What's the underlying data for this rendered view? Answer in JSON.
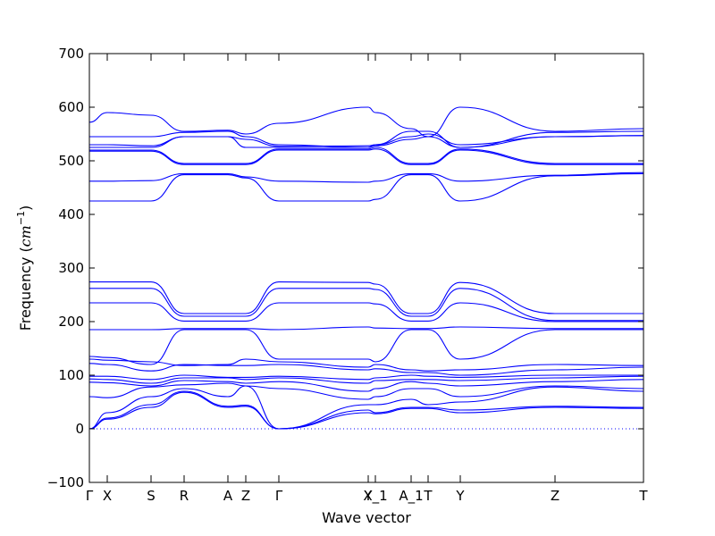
{
  "chart_data": {
    "type": "line",
    "title": "",
    "xlabel": "Wave vector",
    "ylabel": "Frequency (cm⁻¹)",
    "ylabel_prefix": "Frequency (",
    "ylabel_unit": "cm",
    "ylabel_exp": "−1",
    "ylabel_suffix": ")",
    "ylim": [
      -100,
      700
    ],
    "yticks": [
      -100,
      0,
      100,
      200,
      300,
      400,
      500,
      600,
      700
    ],
    "xlim": [
      0,
      6.2
    ],
    "grid": false,
    "legend": "none",
    "color": "#0000ff",
    "xticks": [
      {
        "label": "Γ",
        "x": 0.0
      },
      {
        "label": "X",
        "x": 0.2
      },
      {
        "label": "S",
        "x": 0.69
      },
      {
        "label": "R",
        "x": 1.06
      },
      {
        "label": "A",
        "x": 1.55
      },
      {
        "label": "Z",
        "x": 1.75
      },
      {
        "label": "Γ",
        "x": 2.12
      },
      {
        "label": "Y",
        "x": 3.12
      },
      {
        "label": "X_1",
        "x": 3.2
      },
      {
        "label": "A_1",
        "x": 3.6
      },
      {
        "label": "T",
        "x": 3.79
      },
      {
        "label": "Y",
        "x": 4.15
      },
      {
        "label": "Z",
        "x": 5.21
      },
      {
        "label": "T",
        "x": 6.2
      }
    ],
    "series": [
      {
        "x": [
          0,
          0.2,
          0.69,
          1.06,
          1.55,
          1.75,
          2.12,
          3.12,
          3.2,
          3.6,
          3.79,
          4.15,
          5.21,
          6.2
        ],
        "values": [
          572,
          590,
          585,
          555,
          557,
          550,
          570,
          600,
          590,
          560,
          545,
          600,
          555,
          560
        ]
      },
      {
        "x": [
          0,
          0.2,
          0.69,
          1.06,
          1.55,
          1.75,
          2.12,
          3.12,
          3.2,
          3.6,
          3.79,
          4.15,
          5.21,
          6.2
        ],
        "values": [
          545,
          545,
          545,
          553,
          555,
          545,
          530,
          525,
          530,
          555,
          555,
          525,
          553,
          555
        ]
      },
      {
        "x": [
          0,
          0.2,
          0.69,
          1.06,
          1.55,
          1.75,
          2.12,
          3.12,
          3.2,
          3.6,
          3.79,
          4.15,
          5.21,
          6.2
        ],
        "values": [
          530,
          530,
          528,
          545,
          545,
          540,
          527,
          528,
          530,
          545,
          550,
          530,
          545,
          547
        ]
      },
      {
        "x": [
          0,
          0.2,
          0.69,
          1.06,
          1.55,
          1.75,
          2.12,
          3.12,
          3.2,
          3.6,
          3.79,
          4.15,
          5.21,
          6.2
        ],
        "values": [
          525,
          525,
          525,
          545,
          545,
          525,
          525,
          525,
          528,
          540,
          545,
          525,
          545,
          547
        ]
      },
      {
        "x": [
          0,
          0.2,
          0.69,
          1.06,
          1.55,
          1.75,
          2.12,
          3.12,
          3.2,
          3.6,
          3.79,
          4.15,
          5.21,
          6.2
        ],
        "values": [
          520,
          520,
          520,
          495,
          495,
          495,
          522,
          522,
          525,
          495,
          495,
          522,
          495,
          495
        ]
      },
      {
        "x": [
          0,
          0.2,
          0.69,
          1.06,
          1.55,
          1.75,
          2.12,
          3.12,
          3.2,
          3.6,
          3.79,
          4.15,
          5.21,
          6.2
        ],
        "values": [
          518,
          518,
          518,
          493,
          493,
          493,
          520,
          520,
          522,
          493,
          493,
          520,
          493,
          493
        ]
      },
      {
        "x": [
          0,
          0.2,
          0.69,
          1.06,
          1.55,
          1.75,
          2.12,
          3.12,
          3.2,
          3.6,
          3.79,
          4.15,
          5.21,
          6.2
        ],
        "values": [
          462,
          462,
          463,
          476,
          476,
          470,
          462,
          460,
          462,
          476,
          476,
          462,
          473,
          478
        ]
      },
      {
        "x": [
          0,
          0.2,
          0.69,
          1.06,
          1.55,
          1.75,
          2.12,
          3.12,
          3.2,
          3.6,
          3.79,
          4.15,
          5.21,
          6.2
        ],
        "values": [
          425,
          425,
          425,
          474,
          474,
          468,
          425,
          425,
          428,
          474,
          474,
          425,
          472,
          476
        ]
      },
      {
        "x": [
          0,
          0.2,
          0.69,
          1.06,
          1.55,
          1.75,
          2.12,
          3.12,
          3.2,
          3.6,
          3.79,
          4.15,
          5.21,
          6.2
        ],
        "values": [
          274,
          274,
          274,
          215,
          215,
          215,
          274,
          273,
          270,
          215,
          215,
          273,
          215,
          215
        ]
      },
      {
        "x": [
          0,
          0.2,
          0.69,
          1.06,
          1.55,
          1.75,
          2.12,
          3.12,
          3.2,
          3.6,
          3.79,
          4.15,
          5.21,
          6.2
        ],
        "values": [
          262,
          262,
          262,
          210,
          210,
          210,
          262,
          262,
          260,
          210,
          210,
          262,
          202,
          202
        ]
      },
      {
        "x": [
          0,
          0.2,
          0.69,
          1.06,
          1.55,
          1.75,
          2.12,
          3.12,
          3.2,
          3.6,
          3.79,
          4.15,
          5.21,
          6.2
        ],
        "values": [
          235,
          235,
          235,
          201,
          201,
          201,
          235,
          235,
          233,
          201,
          201,
          235,
          200,
          200
        ]
      },
      {
        "x": [
          0,
          0.2,
          0.69,
          1.06,
          1.55,
          1.75,
          2.12,
          3.12,
          3.2,
          3.6,
          3.79,
          4.15,
          5.21,
          6.2
        ],
        "values": [
          185,
          185,
          185,
          187,
          187,
          187,
          185,
          190,
          188,
          187,
          187,
          190,
          187,
          187
        ]
      },
      {
        "x": [
          0,
          0.2,
          0.69,
          1.06,
          1.55,
          1.75,
          2.12,
          3.12,
          3.2,
          3.6,
          3.79,
          4.15,
          5.21,
          6.2
        ],
        "values": [
          135,
          133,
          120,
          185,
          185,
          185,
          130,
          130,
          125,
          185,
          185,
          130,
          185,
          185
        ]
      },
      {
        "x": [
          0,
          0.2,
          0.69,
          1.06,
          1.55,
          1.75,
          2.12,
          3.12,
          3.2,
          3.6,
          3.79,
          4.15,
          5.21,
          6.2
        ],
        "values": [
          130,
          128,
          125,
          118,
          120,
          130,
          125,
          115,
          120,
          110,
          108,
          110,
          120,
          118
        ]
      },
      {
        "x": [
          0,
          0.2,
          0.69,
          1.06,
          1.55,
          1.75,
          2.12,
          3.12,
          3.2,
          3.6,
          3.79,
          4.15,
          5.21,
          6.2
        ],
        "values": [
          122,
          120,
          108,
          120,
          118,
          118,
          120,
          110,
          112,
          105,
          105,
          100,
          110,
          115
        ]
      },
      {
        "x": [
          0,
          0.2,
          0.69,
          1.06,
          1.55,
          1.75,
          2.12,
          3.12,
          3.2,
          3.6,
          3.79,
          4.15,
          5.21,
          6.2
        ],
        "values": [
          98,
          98,
          92,
          100,
          96,
          96,
          98,
          92,
          95,
          100,
          98,
          96,
          100,
          100
        ]
      },
      {
        "x": [
          0,
          0.2,
          0.69,
          1.06,
          1.55,
          1.75,
          2.12,
          3.12,
          3.2,
          3.6,
          3.79,
          4.15,
          5.21,
          6.2
        ],
        "values": [
          93,
          92,
          85,
          95,
          95,
          92,
          95,
          85,
          90,
          92,
          92,
          90,
          95,
          98
        ]
      },
      {
        "x": [
          0,
          0.2,
          0.69,
          1.06,
          1.55,
          1.75,
          2.12,
          3.12,
          3.2,
          3.6,
          3.79,
          4.15,
          5.21,
          6.2
        ],
        "values": [
          87,
          86,
          80,
          90,
          88,
          85,
          88,
          70,
          75,
          88,
          85,
          80,
          88,
          92
        ]
      },
      {
        "x": [
          0,
          0.2,
          0.69,
          1.06,
          1.55,
          1.75,
          2.12,
          3.12,
          3.2,
          3.6,
          3.79,
          4.15,
          5.21,
          6.2
        ],
        "values": [
          60,
          58,
          78,
          82,
          85,
          80,
          75,
          55,
          60,
          75,
          75,
          60,
          80,
          75
        ]
      },
      {
        "x": [
          0,
          0.2,
          0.69,
          1.06,
          1.55,
          1.75,
          2.12,
          3.12,
          3.2,
          3.6,
          3.79,
          4.15,
          5.21,
          6.2
        ],
        "values": [
          0,
          30,
          60,
          75,
          60,
          80,
          0,
          45,
          45,
          55,
          45,
          50,
          78,
          70
        ]
      },
      {
        "x": [
          0,
          0.2,
          0.69,
          1.06,
          1.55,
          1.75,
          2.12,
          3.12,
          3.2,
          3.6,
          3.79,
          4.15,
          5.21,
          6.2
        ],
        "values": [
          0,
          20,
          45,
          70,
          42,
          44,
          0,
          35,
          30,
          40,
          40,
          35,
          42,
          40
        ]
      },
      {
        "x": [
          0,
          0.2,
          0.69,
          1.06,
          1.55,
          1.75,
          2.12,
          3.12,
          3.2,
          3.6,
          3.79,
          4.15,
          5.21,
          6.2
        ],
        "values": [
          0,
          18,
          40,
          68,
          40,
          42,
          0,
          30,
          28,
          38,
          38,
          30,
          40,
          38
        ]
      }
    ]
  }
}
